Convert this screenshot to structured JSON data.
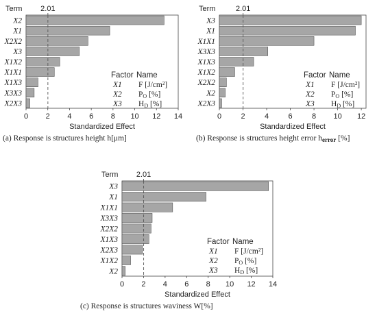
{
  "colors": {
    "bar_fill": "#a6a6a6",
    "bar_stroke": "#404040",
    "axis": "#444444",
    "ref_line": "#555555",
    "text": "#222222"
  },
  "chart_data": [
    {
      "type": "bar",
      "orientation": "horizontal",
      "title": "Term",
      "xlabel": "Standardized Effect",
      "caption": "(a) Response is structures height h[μm]",
      "xlim": [
        0,
        14
      ],
      "xticks": [
        0,
        2,
        4,
        6,
        8,
        10,
        12,
        14
      ],
      "reference": {
        "value": 2.01,
        "label": "2.01"
      },
      "categories": [
        "X2",
        "X1",
        "X2X2",
        "X3",
        "X1X2",
        "X1X1",
        "X1X3",
        "X3X3",
        "X2X3"
      ],
      "values": [
        12.7,
        7.7,
        5.7,
        4.9,
        3.1,
        2.6,
        1.1,
        0.75,
        0.35
      ],
      "legend": {
        "header": [
          "Factor",
          "Name"
        ],
        "rows": [
          {
            "factor": "X1",
            "name": "F [J/cm²]"
          },
          {
            "factor": "X2",
            "name_main": "P",
            "name_sub": "O",
            "name_rest": " [%]"
          },
          {
            "factor": "X3",
            "name_main": "H",
            "name_sub": "D",
            "name_rest": " [%]"
          }
        ]
      }
    },
    {
      "type": "bar",
      "orientation": "horizontal",
      "title": "Term",
      "xlabel": "Standardized Effect",
      "caption_main": "(b) Response is structures height error h",
      "caption_sub": "error",
      "caption_rest": " [%]",
      "xlim": [
        0,
        12.4
      ],
      "xticks": [
        0,
        2,
        4,
        6,
        8,
        10,
        12
      ],
      "reference": {
        "value": 2.01,
        "label": "2.01"
      },
      "categories": [
        "X3",
        "X1",
        "X1X1",
        "X3X3",
        "X1X3",
        "X1X2",
        "X2X2",
        "X2",
        "X2X3"
      ],
      "values": [
        12.0,
        11.5,
        8.0,
        4.1,
        2.9,
        1.3,
        0.6,
        0.5,
        0.2
      ],
      "legend": {
        "header": [
          "Factor",
          "Name"
        ],
        "rows": [
          {
            "factor": "X1",
            "name": "F [J/cm²]"
          },
          {
            "factor": "X2",
            "name_main": "P",
            "name_sub": "O",
            "name_rest": " [%]"
          },
          {
            "factor": "X3",
            "name_main": "H",
            "name_sub": "D",
            "name_rest": " [%]"
          }
        ]
      }
    },
    {
      "type": "bar",
      "orientation": "horizontal",
      "title": "Term",
      "xlabel": "Standardized Effect",
      "caption": "(c) Response is structures waviness W[%]",
      "xlim": [
        0,
        14
      ],
      "xticks": [
        0,
        2,
        4,
        6,
        8,
        10,
        12,
        14
      ],
      "reference": {
        "value": 2.01,
        "label": "2.01"
      },
      "categories": [
        "X3",
        "X1",
        "X1X1",
        "X3X3",
        "X2X2",
        "X1X3",
        "X2X3",
        "X1X2",
        "X2"
      ],
      "values": [
        13.6,
        7.8,
        4.7,
        2.8,
        2.7,
        2.5,
        1.9,
        0.8,
        0.3
      ],
      "legend": {
        "header": [
          "Factor",
          "Name"
        ],
        "rows": [
          {
            "factor": "X1",
            "name": "F [J/cm²]"
          },
          {
            "factor": "X2",
            "name_main": "P",
            "name_sub": "O",
            "name_rest": " [%]"
          },
          {
            "factor": "X3",
            "name_main": "H",
            "name_sub": "D",
            "name_rest": " [%]"
          }
        ]
      }
    }
  ]
}
